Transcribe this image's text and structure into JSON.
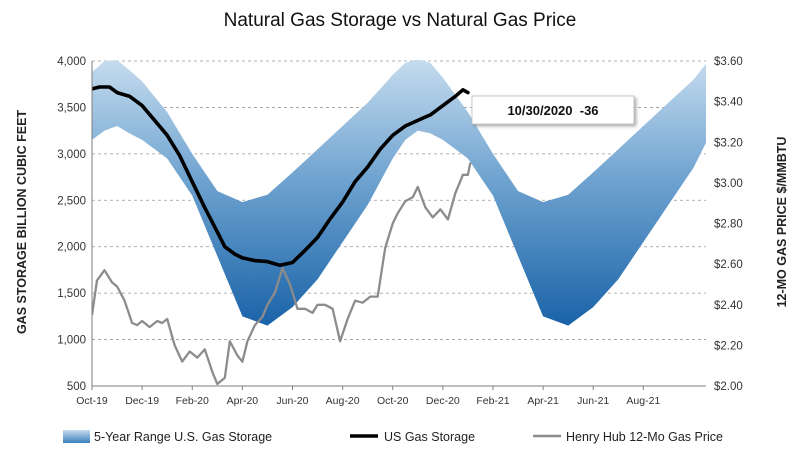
{
  "chart_data": {
    "type": "area+line",
    "title": "Natural Gas Storage vs Natural Gas Price",
    "y_left_label": "GAS STORAGE BILLION CUBIC FEET",
    "y_right_label": "12-MO GAS PRICE $/MMBTU",
    "y_left_ticks": [
      "500",
      "1,000",
      "1,500",
      "2,000",
      "2,500",
      "3,000",
      "3,500",
      "4,000"
    ],
    "y_left_lim": [
      500,
      4000
    ],
    "y_right_ticks": [
      "$2.00",
      "$2.20",
      "$2.40",
      "$2.60",
      "$2.80",
      "$3.00",
      "$3.20",
      "$3.40",
      "$3.60"
    ],
    "y_right_lim": [
      2.0,
      3.6
    ],
    "x_ticks": [
      "Oct-19",
      "Dec-19",
      "Feb-20",
      "Apr-20",
      "Jun-20",
      "Aug-20",
      "Oct-20",
      "Dec-20",
      "Feb-21",
      "Apr-21",
      "Jun-21",
      "Aug-21"
    ],
    "x_lim": [
      0,
      24.5
    ],
    "grid": "horizontal dashed",
    "legend_position": "bottom",
    "annotation": "10/30/2020  -36",
    "series": [
      {
        "name": "5-Year Range U.S. Gas Storage",
        "kind": "range-area",
        "color": "#1f6fb2",
        "x": [
          0,
          0.5,
          1,
          1.5,
          2,
          3,
          4,
          5,
          6,
          7,
          8,
          9,
          10,
          11,
          12,
          12.5,
          13,
          13.5,
          14,
          15,
          16,
          17,
          18,
          19,
          20,
          21,
          22,
          23,
          24,
          24.5
        ],
        "low": [
          3150,
          3250,
          3300,
          3220,
          3150,
          2950,
          2550,
          1900,
          1250,
          1150,
          1350,
          1650,
          2050,
          2450,
          2950,
          3150,
          3250,
          3220,
          3150,
          2950,
          2550,
          1900,
          1250,
          1150,
          1350,
          1650,
          2050,
          2450,
          2850,
          3120
        ],
        "high": [
          3880,
          4000,
          4010,
          3900,
          3780,
          3450,
          3000,
          2600,
          2480,
          2560,
          2800,
          3050,
          3300,
          3550,
          3850,
          3980,
          4020,
          3980,
          3820,
          3450,
          3000,
          2600,
          2480,
          2560,
          2800,
          3050,
          3300,
          3550,
          3800,
          3970
        ]
      },
      {
        "name": "US Gas Storage",
        "kind": "line",
        "color": "#000000",
        "x": [
          0,
          0.3,
          0.7,
          1,
          1.5,
          2,
          2.5,
          3,
          3.5,
          4,
          4.5,
          5,
          5.3,
          5.7,
          6,
          6.5,
          7,
          7.5,
          8,
          8.5,
          9,
          9.5,
          10,
          10.5,
          11,
          11.5,
          12,
          12.5,
          13,
          13.5,
          14,
          14.5,
          14.8,
          15
        ],
        "y": [
          3700,
          3720,
          3720,
          3660,
          3620,
          3520,
          3360,
          3200,
          2980,
          2700,
          2420,
          2160,
          2000,
          1920,
          1880,
          1850,
          1840,
          1800,
          1830,
          1960,
          2100,
          2300,
          2480,
          2700,
          2860,
          3050,
          3200,
          3300,
          3360,
          3420,
          3520,
          3620,
          3690,
          3660
        ]
      },
      {
        "name": "Henry Hub 12-Mo Gas Price",
        "kind": "line",
        "color": "#8c8c8c",
        "x": [
          0,
          0.2,
          0.5,
          0.8,
          1,
          1.3,
          1.6,
          1.8,
          2,
          2.3,
          2.6,
          2.8,
          3,
          3.3,
          3.6,
          3.9,
          4.2,
          4.5,
          4.8,
          5,
          5.3,
          5.5,
          5.8,
          6,
          6.2,
          6.5,
          6.8,
          7,
          7.3,
          7.6,
          7.9,
          8.2,
          8.5,
          8.8,
          9,
          9.3,
          9.6,
          9.9,
          10.2,
          10.5,
          10.8,
          11.1,
          11.4,
          11.7,
          12,
          12.2,
          12.5,
          12.8,
          13,
          13.3,
          13.6,
          13.9,
          14.2,
          14.5,
          14.8,
          15,
          15.1
        ],
        "y": [
          2.35,
          2.52,
          2.57,
          2.51,
          2.49,
          2.42,
          2.31,
          2.3,
          2.32,
          2.29,
          2.32,
          2.31,
          2.33,
          2.2,
          2.12,
          2.17,
          2.14,
          2.18,
          2.07,
          2.01,
          2.04,
          2.22,
          2.15,
          2.12,
          2.22,
          2.3,
          2.34,
          2.4,
          2.46,
          2.58,
          2.5,
          2.38,
          2.38,
          2.36,
          2.4,
          2.4,
          2.38,
          2.22,
          2.33,
          2.42,
          2.41,
          2.44,
          2.44,
          2.68,
          2.8,
          2.85,
          2.91,
          2.93,
          2.98,
          2.88,
          2.83,
          2.87,
          2.82,
          2.95,
          3.04,
          3.04,
          3.1
        ]
      }
    ]
  },
  "legend": {
    "range_label": "5-Year Range U.S. Gas Storage",
    "storage_label": "US Gas Storage",
    "price_label": "Henry Hub 12-Mo Gas Price"
  }
}
